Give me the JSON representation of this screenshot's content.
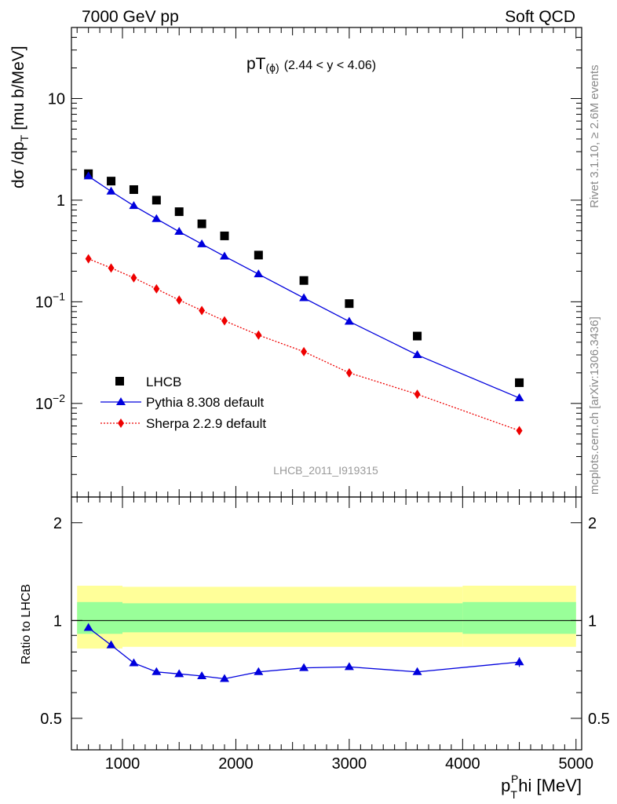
{
  "header": {
    "left": "7000 GeV pp",
    "right": "Soft QCD"
  },
  "side_labels": {
    "rivet": "Rivet 3.1.10, ≥ 2.6M events",
    "mcplots": "mcplots.cern.ch [arXiv:1306.3436]"
  },
  "chart_data": [
    {
      "type": "scatter",
      "title_main": "pT",
      "title_sub": "(ϕ)",
      "title_range": "(2.44 < y < 4.06)",
      "watermark": "LHCB_2011_I919315",
      "ylabel_main": "dσ /dp",
      "ylabel_sub": "T",
      "ylabel_unit": "[mu b/MeV]",
      "yscale": "log",
      "ylim": [
        0.0012,
        50
      ],
      "xlim": [
        550,
        5050
      ],
      "y_tick_labels": [
        {
          "value": 10,
          "label": "10"
        },
        {
          "value": 1,
          "label": "1"
        },
        {
          "value": 0.1,
          "base": "10",
          "exp": "−1"
        },
        {
          "value": 0.01,
          "base": "10",
          "exp": "−2"
        }
      ],
      "legend_position": "bottom-left",
      "series": [
        {
          "name": "LHCB",
          "style": "markers",
          "marker": "square",
          "color": "#000000",
          "x": [
            700,
            900,
            1100,
            1300,
            1500,
            1700,
            1900,
            2200,
            2600,
            3000,
            3600,
            4500
          ],
          "y": [
            1.82,
            1.54,
            1.27,
            1.0,
            0.77,
            0.585,
            0.445,
            0.288,
            0.162,
            0.096,
            0.046,
            0.016
          ]
        },
        {
          "name": "Pythia 8.308 default",
          "style": "solid-line",
          "marker": "triangle",
          "color": "#0000dd",
          "x": [
            700,
            900,
            1100,
            1300,
            1500,
            1700,
            1900,
            2200,
            2600,
            3000,
            3600,
            4500
          ],
          "y": [
            1.72,
            1.22,
            0.88,
            0.655,
            0.49,
            0.37,
            0.28,
            0.187,
            0.109,
            0.064,
            0.03,
            0.0113
          ]
        },
        {
          "name": "Sherpa 2.2.9 default",
          "style": "dotted-line",
          "marker": "diamond",
          "color": "#ee0000",
          "x": [
            700,
            900,
            1100,
            1300,
            1500,
            1700,
            1900,
            2200,
            2600,
            3000,
            3600,
            4500
          ],
          "y": [
            0.265,
            0.215,
            0.172,
            0.134,
            0.104,
            0.082,
            0.065,
            0.047,
            0.0323,
            0.02,
            0.0123,
            0.0054
          ]
        }
      ]
    },
    {
      "type": "line",
      "ylabel": "Ratio to LHCB",
      "xlabel_main": "p",
      "xlabel_sub": "T",
      "xlabel_sup": "P",
      "xlabel_rest": "hi [MeV]",
      "yscale": "log",
      "ylim": [
        0.4,
        2.4
      ],
      "xlim": [
        550,
        5050
      ],
      "reference_line": 1,
      "y_tick_labels": [
        {
          "value": 2,
          "label": "2"
        },
        {
          "value": 1,
          "label": "1"
        },
        {
          "value": 0.5,
          "label": "0.5"
        }
      ],
      "x_tick_labels": [
        {
          "value": 1000,
          "label": "1000"
        },
        {
          "value": 2000,
          "label": "2000"
        },
        {
          "value": 3000,
          "label": "3000"
        },
        {
          "value": 4000,
          "label": "4000"
        },
        {
          "value": 5000,
          "label": "5000"
        }
      ],
      "bands": [
        {
          "name": "total uncertainty",
          "color": "#ffff99",
          "segments": [
            {
              "x": [
                600,
                1000
              ],
              "y": [
                0.82,
                1.28
              ]
            },
            {
              "x": [
                1000,
                4000
              ],
              "y": [
                0.83,
                1.27
              ]
            },
            {
              "x": [
                4000,
                5000
              ],
              "y": [
                0.83,
                1.28
              ]
            }
          ]
        },
        {
          "name": "statistical uncertainty",
          "color": "#99ff99",
          "segments": [
            {
              "x": [
                600,
                1000
              ],
              "y": [
                0.91,
                1.14
              ]
            },
            {
              "x": [
                1000,
                4000
              ],
              "y": [
                0.92,
                1.13
              ]
            },
            {
              "x": [
                4000,
                5000
              ],
              "y": [
                0.91,
                1.14
              ]
            }
          ]
        }
      ],
      "series": [
        {
          "name": "Pythia 8.308 default",
          "style": "solid-line",
          "marker": "triangle",
          "color": "#0000dd",
          "x": [
            700,
            900,
            1100,
            1300,
            1500,
            1700,
            1900,
            2200,
            2600,
            3000,
            3600,
            4500
          ],
          "y": [
            0.95,
            0.84,
            0.74,
            0.695,
            0.685,
            0.675,
            0.662,
            0.695,
            0.715,
            0.72,
            0.695,
            0.745
          ],
          "yerr": [
            0.01,
            0.01,
            0.01,
            0.01,
            0.01,
            0.01,
            0.01,
            0.01,
            0.01,
            0.01,
            0.01,
            0.025
          ]
        }
      ]
    }
  ]
}
